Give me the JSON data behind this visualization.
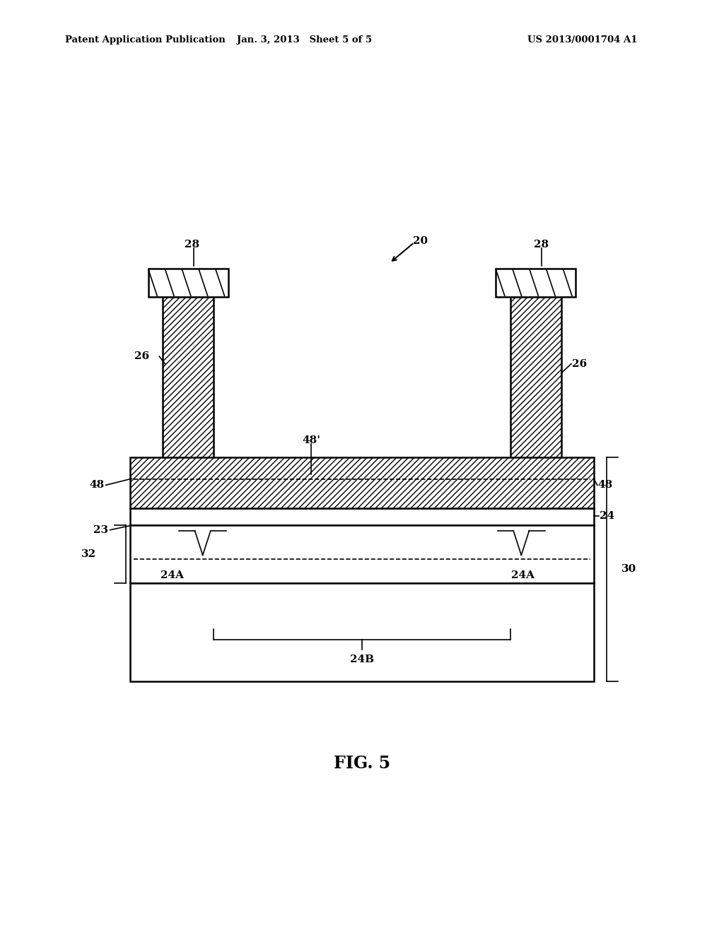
{
  "bg_color": "#ffffff",
  "header_left": "Patent Application Publication",
  "header_mid": "Jan. 3, 2013   Sheet 5 of 5",
  "header_right": "US 2013/0001704 A1",
  "fig_label": "FIG. 5"
}
